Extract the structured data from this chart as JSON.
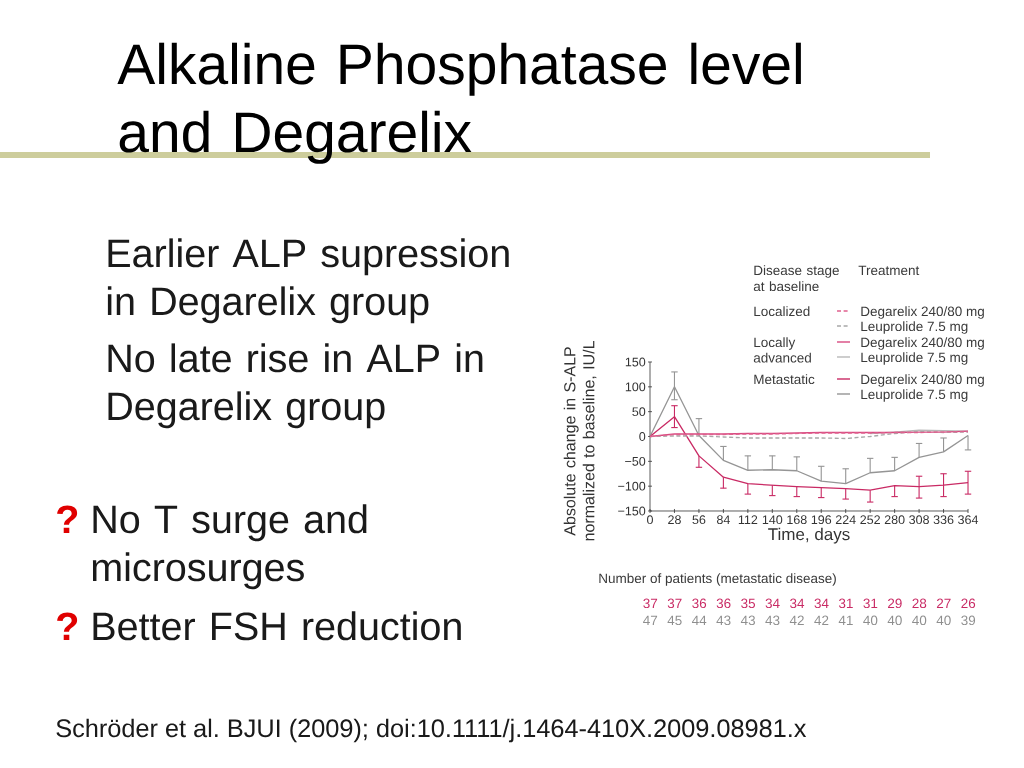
{
  "chart_data": {
    "type": "line",
    "title": "Alkaline Phosphatase level and Degarelix",
    "xlabel": "Time, days",
    "ylabel": "Absolute change in S-ALP normalized to baseline, IU/L",
    "legend_title": "Treatment",
    "legend": "top right",
    "annotations": [
      "Earlier ALP supression in Degarelix group",
      "No late rise in ALP in Degarelix group",
      "?",
      "No T surge and microsurges",
      "?",
      "Better FSH reduction",
      "Schröder et al. BJUI (2009); doi:10.1111/j.1464-410X.2009.08981.x",
      "Disease stage at baseline",
      "Localized",
      "Locally advanced",
      "Metastatic",
      "Number of patients (metastatic disease)",
      "37 37 36 36 35 34 34 34 31 31 29 28 27 26",
      "47 45 44 43 43 43 42 42 41 40 40 40 40 39"
    ],
    "x": [
      0,
      28,
      56,
      84,
      112,
      140,
      168,
      196,
      224,
      252,
      280,
      308,
      336,
      364
    ],
    "xlim": [
      0,
      364
    ],
    "xticks": [
      0,
      28,
      56,
      84,
      112,
      140,
      168,
      196,
      224,
      252,
      280,
      308,
      336,
      364
    ],
    "ylim": [
      -150,
      150
    ],
    "yticks": [
      {
        "value": -150,
        "label": "−150"
      },
      {
        "value": -100,
        "label": "−100"
      },
      {
        "value": -50,
        "label": "−50"
      },
      0,
      50,
      100,
      150
    ],
    "series": [
      {
        "name": "Degarelix 240/80 mg",
        "color": "#e0608e",
        "line_style": "dashed",
        "values": [
          0,
          4,
          4,
          4,
          5,
          5,
          6,
          7,
          7,
          7,
          8,
          8,
          9,
          10
        ]
      },
      {
        "name": "Leuprolide 7.5 mg",
        "color": "#a8a8a8",
        "line_style": "dashed",
        "values": [
          0,
          1,
          1,
          -1,
          -3,
          -3,
          -3,
          -3,
          -4,
          0,
          6,
          10,
          8,
          9
        ]
      },
      {
        "name": "Degarelix 240/80 mg",
        "color": "#d84a80",
        "line_style": "solid",
        "values": [
          0,
          5,
          5,
          5,
          6,
          6,
          7,
          8,
          8,
          8,
          8,
          9,
          9,
          11
        ]
      },
      {
        "name": "Leuprolide 7.5 mg",
        "color": "#b8b8b8",
        "line_style": "solid",
        "values": [
          null,
          null,
          null,
          null,
          null,
          null,
          null,
          null,
          null,
          6,
          9,
          13,
          12,
          11
        ]
      },
      {
        "name": "Degarelix 240/80 mg",
        "color": "#c92a64",
        "line_style": "solid",
        "values": [
          0,
          40,
          -39,
          -82,
          -95,
          -98,
          -101,
          -103,
          -105,
          -108,
          -99,
          -101,
          -98,
          -93
        ],
        "errors": [
          null,
          [
            18,
            62
          ],
          [
            -62,
            -39
          ],
          [
            -104,
            -82
          ],
          [
            -116,
            -95
          ],
          [
            -119,
            -98
          ],
          [
            -121,
            -101
          ],
          [
            -123,
            -103
          ],
          [
            -126,
            -105
          ],
          [
            -132,
            -108
          ],
          [
            -121,
            -99
          ],
          [
            -124,
            -80
          ],
          [
            -121,
            -75
          ],
          [
            -116,
            -70
          ]
        ]
      },
      {
        "name": "Leuprolide 7.5 mg",
        "color": "#959595",
        "line_style": "solid",
        "values": [
          0,
          100,
          2,
          -48,
          -68,
          -67,
          -69,
          -90,
          -95,
          -73,
          -69,
          -42,
          -31,
          2
        ],
        "errors": [
          null,
          [
            74,
            130
          ],
          [
            2,
            36
          ],
          [
            -48,
            -20
          ],
          [
            -68,
            -39
          ],
          [
            -67,
            -39
          ],
          [
            -69,
            -41
          ],
          [
            -90,
            -60
          ],
          [
            -95,
            -65
          ],
          [
            -73,
            -44
          ],
          [
            -69,
            -42
          ],
          [
            -42,
            -14
          ],
          [
            -31,
            -3
          ],
          [
            -27,
            2
          ]
        ]
      }
    ]
  }
}
